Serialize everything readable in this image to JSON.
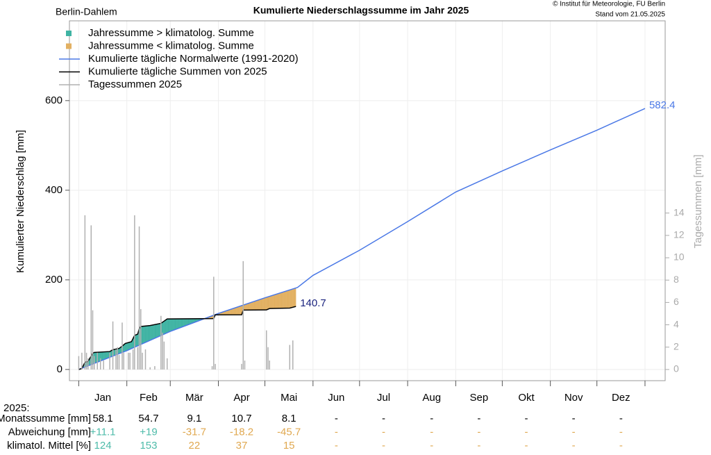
{
  "chart_data": {
    "type": "line",
    "title": "Kumulierte Niederschlagssumme im Jahr 2025",
    "station": "Berlin-Dahlem",
    "copyright": "© Institut für Meteorologie, FU Berlin",
    "date_note": "Stand vom 21.05.2025",
    "ylabel": "Kumulierter Niederschlag [mm]",
    "y2label": "Tagessummen [mm]",
    "xlim": [
      -6,
      378
    ],
    "xticks": [
      0,
      31,
      59,
      90,
      120,
      151,
      181,
      212,
      243,
      273,
      304,
      334,
      365
    ],
    "categories": [
      "Jan",
      "Feb",
      "Mär",
      "Apr",
      "Mai",
      "Jun",
      "Jul",
      "Aug",
      "Sep",
      "Okt",
      "Nov",
      "Dez"
    ],
    "ylim": [
      -25,
      778
    ],
    "yticks": [
      0,
      200,
      400,
      600
    ],
    "y2lim": [
      -1,
      31.2
    ],
    "y2ticks": [
      0,
      2,
      4,
      6,
      8,
      10,
      12,
      14
    ],
    "grid": true,
    "fill_legend": [
      {
        "name": "Jahressumme > klimatolog. Summe",
        "color": "#3fb3a3"
      },
      {
        "name": "Jahressumme < klimatolog. Summe",
        "color": "#e2b062"
      }
    ],
    "series": [
      {
        "name": "Kumulierte tägliche Normalwerte (1991-2020)",
        "color": "#4a78e6",
        "kind": "line",
        "x": [
          0,
          31,
          59,
          90,
          120,
          141,
          151,
          181,
          212,
          243,
          273,
          304,
          334,
          365
        ],
        "values": [
          0,
          42,
          85,
          125,
          160,
          183,
          210,
          266,
          330,
          396,
          443,
          490,
          534,
          582.4
        ]
      },
      {
        "name": "Kumulierte tägliche Summen von 2025",
        "color": "#000000",
        "kind": "line",
        "label_color": "#1a237e",
        "x": [
          0,
          2,
          4,
          6,
          8,
          9,
          10,
          20,
          22,
          26,
          28,
          30,
          34,
          36,
          38,
          39,
          40,
          46,
          53,
          57,
          87,
          88,
          105,
          106,
          121,
          123,
          136,
          140
        ],
        "values": [
          0,
          2,
          16,
          18,
          30,
          36,
          38,
          40,
          44,
          47,
          52,
          58.1,
          62,
          76,
          79,
          91,
          96,
          98,
          103,
          112.8,
          113.5,
          121.9,
          122,
          132.6,
          133,
          136,
          137,
          140.7
        ]
      },
      {
        "name": "Tagessummen 2025",
        "color": "#b0b0b0",
        "kind": "bars",
        "axis": "y2",
        "x": [
          0,
          2,
          4,
          5,
          6,
          8,
          9,
          10,
          12,
          14,
          16,
          20,
          22,
          24,
          25,
          26,
          28,
          29,
          32,
          33,
          35,
          36,
          38,
          39,
          40,
          41,
          43,
          46,
          49,
          53,
          54,
          55,
          57,
          86,
          87,
          88,
          105,
          106,
          107,
          121,
          122,
          123,
          136,
          138
        ],
        "values": [
          1.2,
          1.5,
          13.8,
          1.5,
          1.0,
          12.9,
          5.3,
          1.2,
          1.5,
          1.0,
          0.8,
          1.5,
          4.3,
          1.8,
          2.0,
          1.3,
          4.2,
          1.5,
          1.5,
          1.5,
          1.8,
          13.8,
          2.0,
          12.8,
          5.4,
          1.5,
          1.8,
          0.2,
          0.3,
          4.8,
          3.3,
          2.5,
          1.0,
          0.3,
          8.3,
          0.5,
          0.5,
          9.7,
          0.8,
          3.5,
          2.0,
          0.8,
          2.2,
          2.6
        ]
      }
    ],
    "table": {
      "header": "2025:",
      "rows": [
        {
          "label": "Monatssumme [mm]",
          "cells": [
            "58.1",
            "54.7",
            "9.1",
            "10.7",
            "8.1",
            "-",
            "-",
            "-",
            "-",
            "-",
            "-",
            "-"
          ],
          "colors": [
            "#000",
            "#000",
            "#000",
            "#000",
            "#000",
            "#000",
            "#000",
            "#000",
            "#000",
            "#000",
            "#000",
            "#000"
          ]
        },
        {
          "label": "Abweichung [mm]",
          "cells": [
            "+11.1",
            "+19",
            "-31.7",
            "-18.2",
            "-45.7",
            "-",
            "-",
            "-",
            "-",
            "-",
            "-",
            "-"
          ],
          "colors": [
            "#4dbba9",
            "#4dbba9",
            "#e0a850",
            "#e0a850",
            "#e0a850",
            "#e0a850",
            "#e0a850",
            "#e0a850",
            "#e0a850",
            "#e0a850",
            "#e0a850",
            "#e0a850"
          ]
        },
        {
          "label": "klimatol. Mittel [%]",
          "cells": [
            "124",
            "153",
            "22",
            "37",
            "15",
            "-",
            "-",
            "-",
            "-",
            "-",
            "-",
            "-"
          ],
          "colors": [
            "#4dbba9",
            "#4dbba9",
            "#e0a850",
            "#e0a850",
            "#e0a850",
            "#e0a850",
            "#e0a850",
            "#e0a850",
            "#e0a850",
            "#e0a850",
            "#e0a850",
            "#e0a850"
          ]
        }
      ]
    }
  }
}
